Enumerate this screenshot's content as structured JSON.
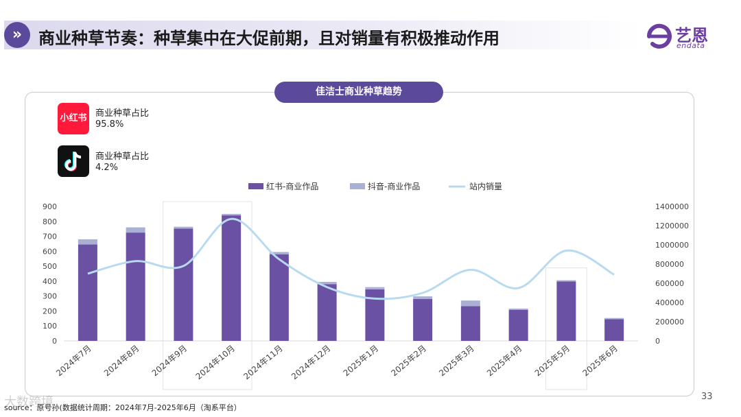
{
  "header": {
    "icon": "double-chevron-right-icon",
    "title": "商业种草节奏：种草集中在大促前期，且对销量有积极推动作用"
  },
  "logo": {
    "cn": "艺恩",
    "en": "endata"
  },
  "panel_title": "佳洁士商业种草趋势",
  "platforms": [
    {
      "name": "小红书",
      "label": "商业种草占比",
      "value": "95.8%"
    },
    {
      "label": "商业种草占比",
      "value": "4.2%"
    }
  ],
  "page_number": "33",
  "source": "source：原号孙(数据统计周期：2024年7月-2025年6月（淘系平台）",
  "watermark": "大数跨境",
  "chart_data": {
    "type": "bar",
    "stacked": true,
    "categories": [
      "2024年7月",
      "2024年8月",
      "2024年9月",
      "2024年10月",
      "2024年11月",
      "2024年12月",
      "2025年1月",
      "2025年2月",
      "2025年3月",
      "2025年4月",
      "2025年5月",
      "2025年6月"
    ],
    "series": [
      {
        "name": "红书-商业作品",
        "axis": "left",
        "color": "#6a51a3",
        "values": [
          645,
          725,
          752,
          840,
          580,
          380,
          345,
          280,
          232,
          208,
          398,
          145
        ]
      },
      {
        "name": "抖音-商业作品",
        "axis": "left",
        "color": "#a9b0d3",
        "values": [
          35,
          35,
          12,
          10,
          15,
          15,
          15,
          18,
          38,
          8,
          8,
          8
        ]
      },
      {
        "name": "站内销量",
        "axis": "right",
        "type": "line",
        "color": "#b8daf0",
        "values": [
          700000,
          830000,
          780000,
          1270000,
          850000,
          560000,
          440000,
          500000,
          740000,
          550000,
          940000,
          690000
        ]
      }
    ],
    "ylim_left": [
      0,
      900
    ],
    "yticks_left": [
      "0",
      "100",
      "200",
      "300",
      "400",
      "500",
      "600",
      "700",
      "800",
      "900"
    ],
    "ylim_right": [
      0,
      1400000
    ],
    "yticks_right": [
      "0",
      "200000",
      "400000",
      "600000",
      "800000",
      "1000000",
      "1200000",
      "1400000"
    ],
    "highlight_categories": [
      "2024年9月",
      "2024年10月",
      "2025年5月"
    ],
    "legend_position": "top",
    "grid": false
  }
}
